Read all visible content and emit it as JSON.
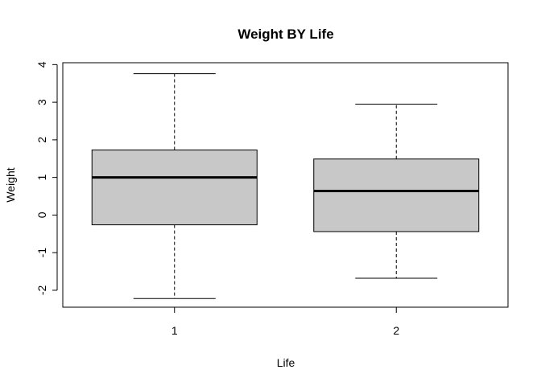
{
  "chart_data": {
    "type": "boxplot",
    "title": "Weight BY Life",
    "xlabel": "Life",
    "ylabel": "Weight",
    "categories": [
      "1",
      "2"
    ],
    "boxes": [
      {
        "category": "1",
        "min": -2.22,
        "q1": -0.26,
        "median": 1.0,
        "q3": 1.73,
        "max": 3.76
      },
      {
        "category": "2",
        "min": -1.68,
        "q1": -0.44,
        "median": 0.64,
        "q3": 1.49,
        "max": 2.95
      }
    ],
    "yticks": [
      -2,
      -1,
      0,
      1,
      2,
      3,
      4
    ],
    "ylim": [
      -2.45,
      4.05
    ],
    "box_fill": "#c8c8c8",
    "grid": false
  }
}
